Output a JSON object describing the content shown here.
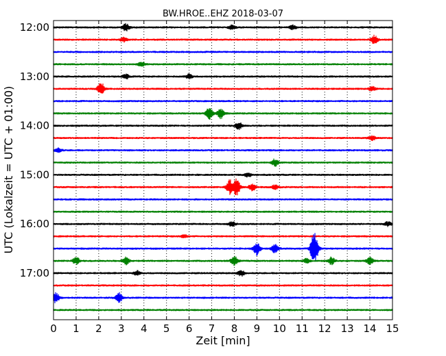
{
  "chart_data": {
    "type": "line",
    "title": "BW.HROE..EHZ 2018-03-07",
    "xlabel": "Zeit  [min]",
    "ylabel": "UTC (Lokalzeit = UTC + 01:00)",
    "xlim": [
      0,
      15
    ],
    "x_ticks": [
      0,
      1,
      2,
      3,
      4,
      5,
      6,
      7,
      8,
      9,
      10,
      11,
      12,
      13,
      14,
      15
    ],
    "x_tick_labels": [
      "0",
      "1",
      "2",
      "3",
      "4",
      "5",
      "6",
      "7",
      "8",
      "9",
      "10",
      "11",
      "12",
      "13",
      "14",
      "15"
    ],
    "y_tick_labels": [
      "12:00",
      "13:00",
      "14:00",
      "15:00",
      "16:00",
      "17:00"
    ],
    "y_tick_row_index": [
      0,
      4,
      8,
      12,
      16,
      20
    ],
    "grid": "vertical dotted",
    "row_colors": [
      "#000000",
      "#ff0000",
      "#0000ff",
      "#008000"
    ],
    "series": [
      {
        "start": "12:00",
        "events": [
          {
            "t": 3.2,
            "amp": 5
          },
          {
            "t": 7.9,
            "amp": 3
          },
          {
            "t": 10.6,
            "amp": 3
          }
        ]
      },
      {
        "start": "12:15",
        "events": [
          {
            "t": 3.1,
            "amp": 3
          },
          {
            "t": 14.2,
            "amp": 6
          }
        ]
      },
      {
        "start": "12:30",
        "events": []
      },
      {
        "start": "12:45",
        "events": [
          {
            "t": 3.9,
            "amp": 3
          }
        ]
      },
      {
        "start": "13:00",
        "events": [
          {
            "t": 3.2,
            "amp": 3
          },
          {
            "t": 6.0,
            "amp": 3
          }
        ]
      },
      {
        "start": "13:15",
        "events": [
          {
            "t": 2.1,
            "amp": 9
          },
          {
            "t": 14.1,
            "amp": 3
          }
        ]
      },
      {
        "start": "13:30",
        "events": []
      },
      {
        "start": "13:45",
        "events": [
          {
            "t": 6.9,
            "amp": 9
          },
          {
            "t": 7.4,
            "amp": 7
          }
        ]
      },
      {
        "start": "14:00",
        "events": [
          {
            "t": 8.2,
            "amp": 5
          }
        ]
      },
      {
        "start": "14:15",
        "events": [
          {
            "t": 14.1,
            "amp": 3
          }
        ]
      },
      {
        "start": "14:30",
        "events": [
          {
            "t": 0.2,
            "amp": 3
          }
        ]
      },
      {
        "start": "14:45",
        "events": [
          {
            "t": 9.8,
            "amp": 5
          }
        ]
      },
      {
        "start": "15:00",
        "events": [
          {
            "t": 8.6,
            "amp": 3
          }
        ]
      },
      {
        "start": "15:15",
        "events": [
          {
            "t": 7.8,
            "amp": 10
          },
          {
            "t": 8.1,
            "amp": 12
          },
          {
            "t": 8.8,
            "amp": 5
          },
          {
            "t": 9.8,
            "amp": 3
          }
        ]
      },
      {
        "start": "15:30",
        "events": []
      },
      {
        "start": "15:45",
        "events": []
      },
      {
        "start": "16:00",
        "events": [
          {
            "t": 7.9,
            "amp": 3
          },
          {
            "t": 14.8,
            "amp": 3
          }
        ]
      },
      {
        "start": "16:15",
        "events": [
          {
            "t": 5.8,
            "amp": 2
          }
        ]
      },
      {
        "start": "16:30",
        "events": [
          {
            "t": 9.0,
            "amp": 9
          },
          {
            "t": 9.8,
            "amp": 6
          },
          {
            "t": 11.5,
            "amp": 15
          },
          {
            "t": 11.6,
            "amp": 10
          }
        ]
      },
      {
        "start": "16:45",
        "events": [
          {
            "t": 1.0,
            "amp": 5
          },
          {
            "t": 3.2,
            "amp": 5
          },
          {
            "t": 8.0,
            "amp": 7
          },
          {
            "t": 11.2,
            "amp": 3
          },
          {
            "t": 12.3,
            "amp": 5
          },
          {
            "t": 14.0,
            "amp": 5
          }
        ]
      },
      {
        "start": "17:00",
        "events": [
          {
            "t": 3.7,
            "amp": 3
          },
          {
            "t": 8.3,
            "amp": 4
          }
        ]
      },
      {
        "start": "17:15",
        "events": []
      },
      {
        "start": "17:30",
        "events": [
          {
            "t": 0.1,
            "amp": 7
          },
          {
            "t": 2.9,
            "amp": 7
          }
        ]
      },
      {
        "start": "17:45",
        "events": []
      }
    ]
  }
}
